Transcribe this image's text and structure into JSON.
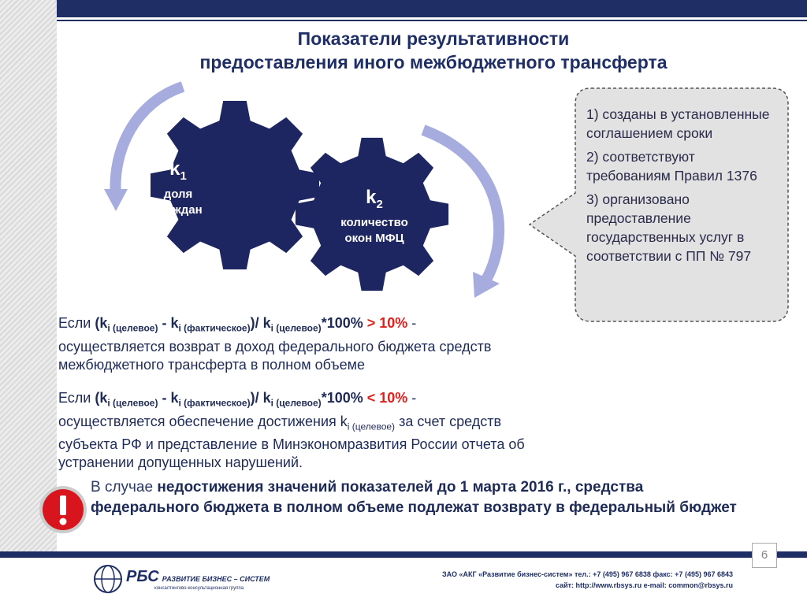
{
  "title": [
    "Показатели результативности",
    "предоставления иного межбюджетного трансферта"
  ],
  "gears": [
    {
      "symbol": "k",
      "index": "1",
      "label": [
        "доля",
        "граждан"
      ]
    },
    {
      "symbol": "k",
      "index": "2",
      "label": [
        "количество",
        "окон МФЦ"
      ]
    }
  ],
  "conditions": [
    "1) созданы в установленные соглашением сроки",
    "2) соответствуют требованиям Правил 1376",
    "3) организовано предоставление государственных услуг в соответствии с  ПП № 797"
  ],
  "rules": [
    {
      "lead": "Если ",
      "formula": [
        "(k",
        "i (целевое)",
        " - k",
        "i (фактическое)",
        ")/ k",
        "i (целевое)",
        "*100% "
      ],
      "threshold": "> 10%",
      "tail": " -",
      "text": [
        "осуществляется возврат в доход федерального бюджета средств межбюджетного трансферта в полном объеме"
      ]
    },
    {
      "lead": "Если ",
      "formula": [
        "(k",
        "i (целевое)",
        " - k",
        "i (фактическое)",
        ")/ k",
        "i (целевое)",
        "*100% "
      ],
      "threshold": "< 10%",
      "tail": " -",
      "text": [
        "осуществляется обеспечение достижения k",
        "i (целевое)",
        " за счет средств субъекта РФ и представление в Минэкономразвития России отчета об устранении допущенных нарушений."
      ]
    }
  ],
  "warning": {
    "prefix": "В случае ",
    "emphasis": "недостижения значений показателей до 1 марта 2016 г., средства федерального бюджета в полном объеме подлежат возврату в федеральный бюджет"
  },
  "page_number": 6,
  "footer": {
    "logo": "РБС",
    "company": "РАЗВИТИЕ  БИЗНЕС – СИСТЕМ",
    "tagline": "консалтингово-консультационная группа",
    "contacts": "ЗАО «АКГ «Развитие бизнес-систем»   тел.: +7 (495) 967 6838   факс: +7 (495) 967 6843",
    "web": "сайт: http://www.rbsys.ru    e-mail: common@rbsys.ru"
  }
}
